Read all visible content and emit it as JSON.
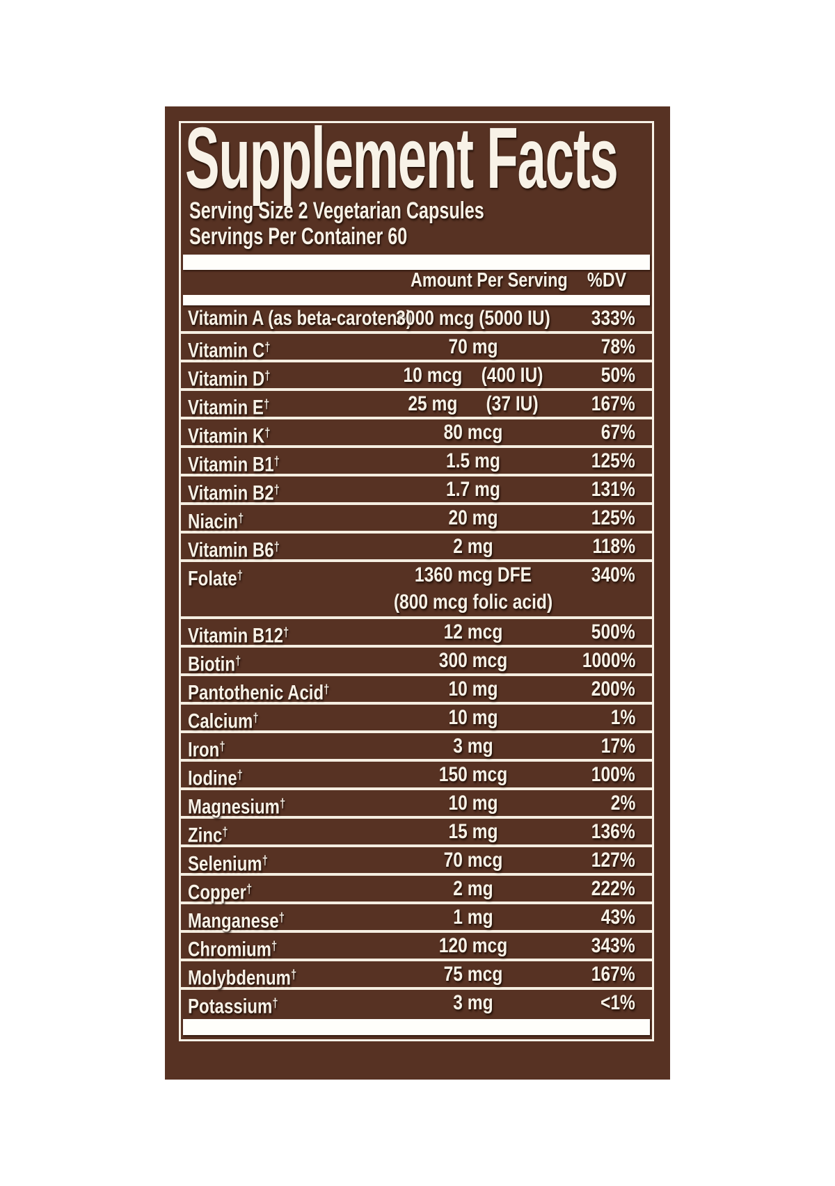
{
  "colors": {
    "panel_brown": "#573223",
    "text_cream": "#f8f2e7",
    "bar_white": "#fffefb",
    "page_background": "#ffffff"
  },
  "label": {
    "title": "Supplement Facts",
    "serving_size": "Serving Size 2 Vegetarian Capsules",
    "servings_per_container": "Servings Per Container 60",
    "dagger_symbol": "†",
    "header": {
      "amount": "Amount Per Serving",
      "dv": "%DV"
    },
    "rows": [
      {
        "name": "Vitamin A (as beta-carotene)",
        "dagger": false,
        "amount": "3000 mcg (5000 IU)",
        "dv": "333%"
      },
      {
        "name": "Vitamin C",
        "dagger": true,
        "amount": "70 mg",
        "dv": "78%"
      },
      {
        "name": "Vitamin D",
        "dagger": true,
        "amount": "10 mcg    (400 IU)",
        "dv": "50%"
      },
      {
        "name": "Vitamin E",
        "dagger": true,
        "amount": "25 mg      (37 IU)",
        "dv": "167%"
      },
      {
        "name": "Vitamin K",
        "dagger": true,
        "amount": "80 mcg",
        "dv": "67%"
      },
      {
        "name": "Vitamin B1",
        "dagger": true,
        "amount": "1.5 mg",
        "dv": "125%"
      },
      {
        "name": "Vitamin B2",
        "dagger": true,
        "amount": "1.7 mg",
        "dv": "131%"
      },
      {
        "name": "Niacin",
        "dagger": true,
        "amount": "20 mg",
        "dv": "125%"
      },
      {
        "name": "Vitamin B6",
        "dagger": true,
        "amount": "2 mg",
        "dv": "118%"
      },
      {
        "name": "Folate",
        "dagger": true,
        "amount": "1360 mcg DFE",
        "amount2": "(800 mcg folic acid)",
        "dv": "340%"
      },
      {
        "name": "Vitamin B12",
        "dagger": true,
        "amount": "12 mcg",
        "dv": "500%"
      },
      {
        "name": "Biotin",
        "dagger": true,
        "amount": "300 mcg",
        "dv": "1000%"
      },
      {
        "name": "Pantothenic Acid",
        "dagger": true,
        "amount": "10 mg",
        "dv": "200%"
      },
      {
        "name": "Calcium",
        "dagger": true,
        "amount": "10 mg",
        "dv": "1%"
      },
      {
        "name": "Iron",
        "dagger": true,
        "amount": "3 mg",
        "dv": "17%"
      },
      {
        "name": "Iodine",
        "dagger": true,
        "amount": "150 mcg",
        "dv": "100%"
      },
      {
        "name": "Magnesium",
        "dagger": true,
        "amount": "10 mg",
        "dv": "2%"
      },
      {
        "name": "Zinc",
        "dagger": true,
        "amount": "15 mg",
        "dv": "136%"
      },
      {
        "name": "Selenium",
        "dagger": true,
        "amount": "70 mcg",
        "dv": "127%"
      },
      {
        "name": "Copper",
        "dagger": true,
        "amount": "2 mg",
        "dv": "222%"
      },
      {
        "name": "Manganese",
        "dagger": true,
        "amount": "1 mg",
        "dv": "43%"
      },
      {
        "name": "Chromium",
        "dagger": true,
        "amount": "120 mcg",
        "dv": "343%"
      },
      {
        "name": "Molybdenum",
        "dagger": true,
        "amount": "75 mcg",
        "dv": "167%"
      },
      {
        "name": "Potassium",
        "dagger": true,
        "amount": "3 mg",
        "dv": "<1%"
      }
    ]
  }
}
